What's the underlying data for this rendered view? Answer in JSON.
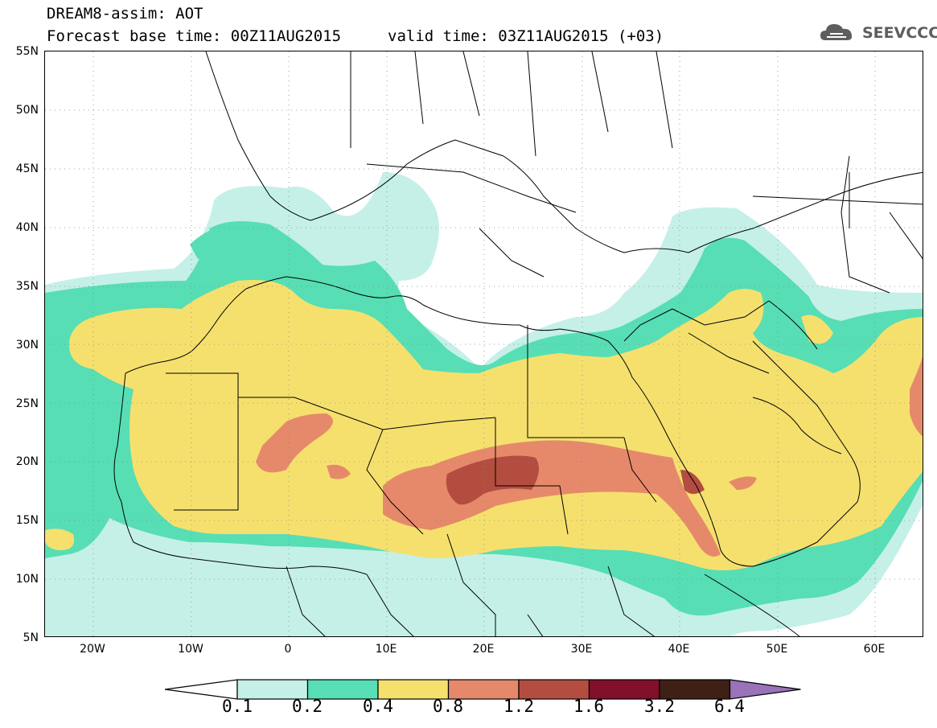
{
  "header": {
    "title_line1": "DREAM8-assim: AOT",
    "title_line2_base": "Forecast base time: 00Z11AUG2015",
    "title_line2_valid": "valid time: 03Z11AUG2015 (+03)",
    "logo_text": "SEEVCCC"
  },
  "map": {
    "latitude_labels": [
      "55N",
      "50N",
      "45N",
      "40N",
      "35N",
      "30N",
      "25N",
      "20N",
      "15N",
      "10N",
      "5N"
    ],
    "longitude_labels": [
      "20W",
      "10W",
      "0",
      "10E",
      "20E",
      "30E",
      "40E",
      "50E",
      "60E"
    ],
    "lon_range": [
      -25,
      65
    ],
    "lat_range": [
      5,
      55
    ],
    "grid": "dotted",
    "field": "AOT",
    "regions": [
      {
        "name": "dust-plume-sahara-main",
        "level": 0.4
      },
      {
        "name": "dust-core-chad-libya",
        "level": 1.2
      },
      {
        "name": "dust-max-chad",
        "level": 1.6
      },
      {
        "name": "dust-red-sea",
        "level": 1.6
      },
      {
        "name": "dust-arabian-peninsula",
        "level": 0.4
      }
    ]
  },
  "colorbar": {
    "labels": [
      "0.1",
      "0.2",
      "0.4",
      "0.8",
      "1.2",
      "1.6",
      "3.2",
      "6.4"
    ],
    "colors": [
      "#ffffff",
      "#c4f0e8",
      "#57deb4",
      "#f5e06e",
      "#e6896a",
      "#b34d40",
      "#82102a",
      "#3e2114",
      "#9a72b8"
    ]
  }
}
